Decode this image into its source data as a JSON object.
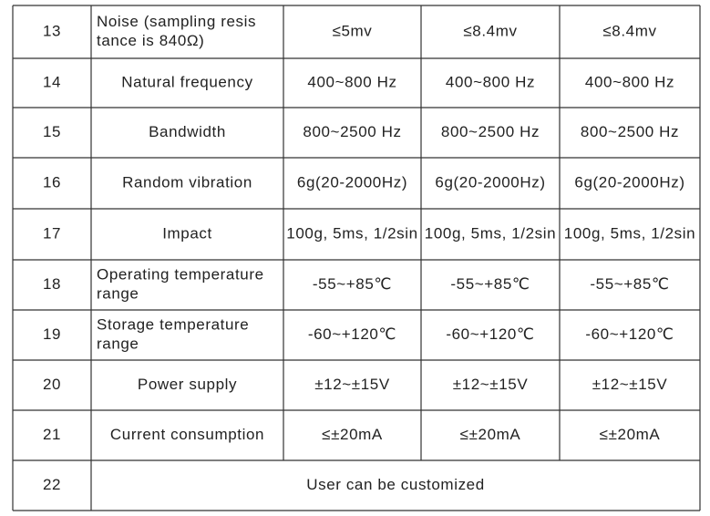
{
  "table": {
    "rows": [
      [
        "13",
        [
          "Noise (sampling resis",
          "tance is 840Ω)"
        ],
        "≤5mv",
        "≤8.4mv",
        "≤8.4mv"
      ],
      [
        "14",
        "Natural frequency",
        "400~800 Hz",
        "400~800 Hz",
        "400~800 Hz"
      ],
      [
        "15",
        "Bandwidth",
        "800~2500 Hz",
        "800~2500 Hz",
        "800~2500 Hz"
      ],
      [
        "16",
        "Random vibration",
        "6g(20-2000Hz)",
        "6g(20-2000Hz)",
        "6g(20-2000Hz)"
      ],
      [
        "17",
        "Impact",
        "100g, 5ms, 1/2sin",
        "100g, 5ms, 1/2sin",
        "100g, 5ms, 1/2sin"
      ],
      [
        "18",
        [
          "Operating temperature",
          "range"
        ],
        "-55~+85℃",
        "-55~+85℃",
        "-55~+85℃"
      ],
      [
        "19",
        [
          "Storage temperature",
          "range"
        ],
        "-60~+120℃",
        "-60~+120℃",
        "-60~+120℃"
      ],
      [
        "20",
        "Power supply",
        "±12~±15V",
        "±12~±15V",
        "±12~±15V"
      ],
      [
        "21",
        "Current consumption",
        "≤±20mA",
        "≤±20mA",
        "≤±20mA"
      ],
      [
        "22",
        "User can be customized"
      ]
    ]
  }
}
